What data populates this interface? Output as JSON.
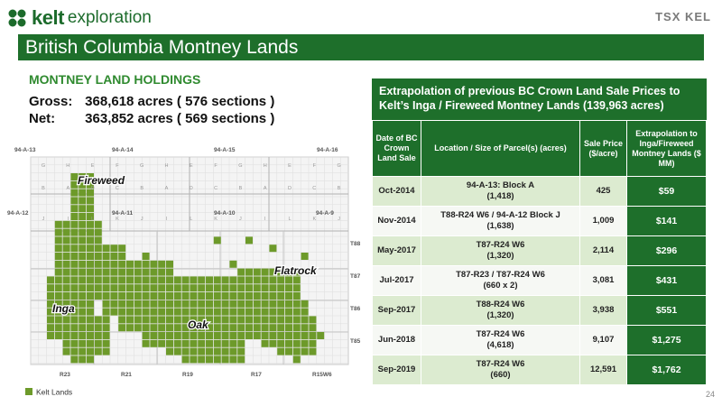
{
  "brand": {
    "name": "kelt",
    "suffix": "exploration",
    "exchange": "TSX",
    "ticker": "KEL",
    "color": "#1e6f2b"
  },
  "title": "British Columbia Montney Lands",
  "holdings": {
    "heading": "MONTNEY LAND HOLDINGS",
    "gross_label": "Gross:",
    "gross_value": "368,618 acres ( 576 sections )",
    "net_label": "Net:",
    "net_value": "363,852 acres ( 569 sections )"
  },
  "map": {
    "grid_headers_top": [
      "94-A-13",
      "94-A-14",
      "94-A-15",
      "94-A-16"
    ],
    "grid_headers_mid": [
      "94-A-12",
      "94-A-11",
      "94-A-10",
      "94-A-9"
    ],
    "row_letters_top": [
      "G",
      "H",
      "E",
      "F",
      "G",
      "H",
      "E",
      "F",
      "G",
      "H",
      "E",
      "F",
      "G"
    ],
    "row_letters_mid": [
      "B",
      "A",
      "D",
      "C",
      "B",
      "A",
      "D",
      "C",
      "B",
      "A",
      "D",
      "C",
      "B"
    ],
    "row_letters_low": [
      "J",
      "I",
      "L",
      "K",
      "J",
      "I",
      "L",
      "K",
      "J",
      "I",
      "L",
      "K",
      "J"
    ],
    "township_labels": [
      "T88",
      "T87",
      "T86",
      "T85"
    ],
    "range_labels": [
      "R23",
      "R21",
      "R19",
      "R17",
      "R15W6"
    ],
    "area_labels": {
      "fireweed": "Fireweed",
      "flatrock": "Flatrock",
      "inga": "Inga",
      "oak": "Oak"
    },
    "legend": "Kelt Lands",
    "land_color": "#6d9a2a",
    "grid_color": "#c8c8c8"
  },
  "table": {
    "heading": "Extrapolation of previous BC Crown Land Sale Prices to Kelt’s Inga / Fireweed Montney Lands (139,963 acres)",
    "columns": [
      "Date of BC Crown Land Sale",
      "Location / Size of Parcel(s) (acres)",
      "Sale Price ($/acre)",
      "Extrapolation to Inga/Fireweed Montney Lands ($ MM)"
    ],
    "rows": [
      {
        "date": "Oct-2014",
        "loc1": "94-A-13: Block A",
        "loc2": "(1,418)",
        "price": "425",
        "ext": "$59"
      },
      {
        "date": "Nov-2014",
        "loc1": "T88-R24 W6 / 94-A-12 Block J",
        "loc2": "(1,638)",
        "price": "1,009",
        "ext": "$141"
      },
      {
        "date": "May-2017",
        "loc1": "T87-R24 W6",
        "loc2": "(1,320)",
        "price": "2,114",
        "ext": "$296"
      },
      {
        "date": "Jul-2017",
        "loc1": "T87-R23 / T87-R24 W6",
        "loc2": "(660 x 2)",
        "price": "3,081",
        "ext": "$431"
      },
      {
        "date": "Sep-2017",
        "loc1": "T88-R24 W6",
        "loc2": "(1,320)",
        "price": "3,938",
        "ext": "$551"
      },
      {
        "date": "Jun-2018",
        "loc1": "T87-R24 W6",
        "loc2": "(4,618)",
        "price": "9,107",
        "ext": "$1,275"
      },
      {
        "date": "Sep-2019",
        "loc1": "T87-R24 W6",
        "loc2": "(660)",
        "price": "12,591",
        "ext": "$1,762"
      }
    ]
  },
  "page_number": "24"
}
